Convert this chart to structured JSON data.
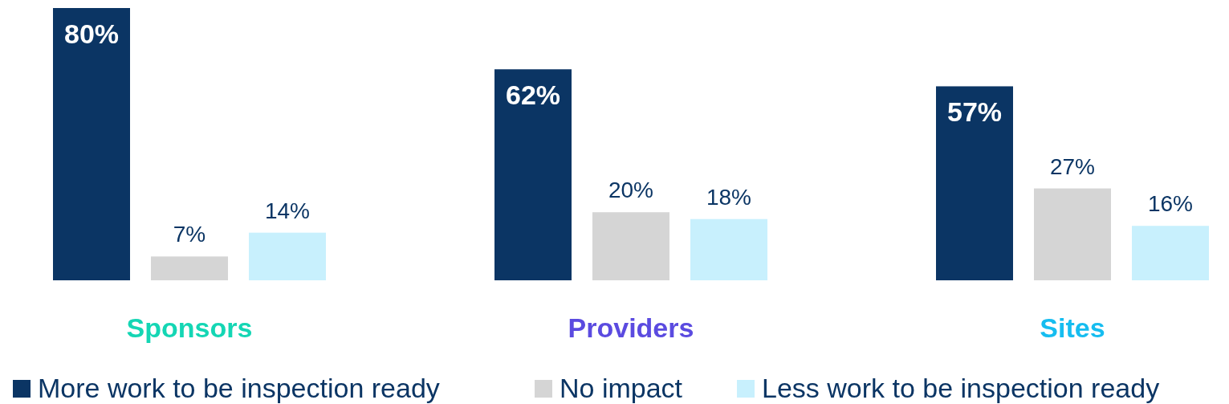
{
  "chart_data": {
    "type": "bar",
    "categories": [
      "Sponsors",
      "Providers",
      "Sites"
    ],
    "series": [
      {
        "name": "More work to be inspection ready",
        "color": "#0b3564",
        "values": [
          80,
          62,
          57
        ],
        "value_labels": [
          "80%",
          "62%",
          "57%"
        ]
      },
      {
        "name": "No impact",
        "color": "#d5d5d5",
        "values": [
          7,
          20,
          27
        ],
        "value_labels": [
          "7%",
          "20%",
          "27%"
        ]
      },
      {
        "name": "Less work to be inspection ready",
        "color": "#c8f0fd",
        "values": [
          14,
          18,
          16
        ],
        "value_labels": [
          "14%",
          "18%",
          "16%"
        ]
      }
    ],
    "legend": "bottom"
  }
}
